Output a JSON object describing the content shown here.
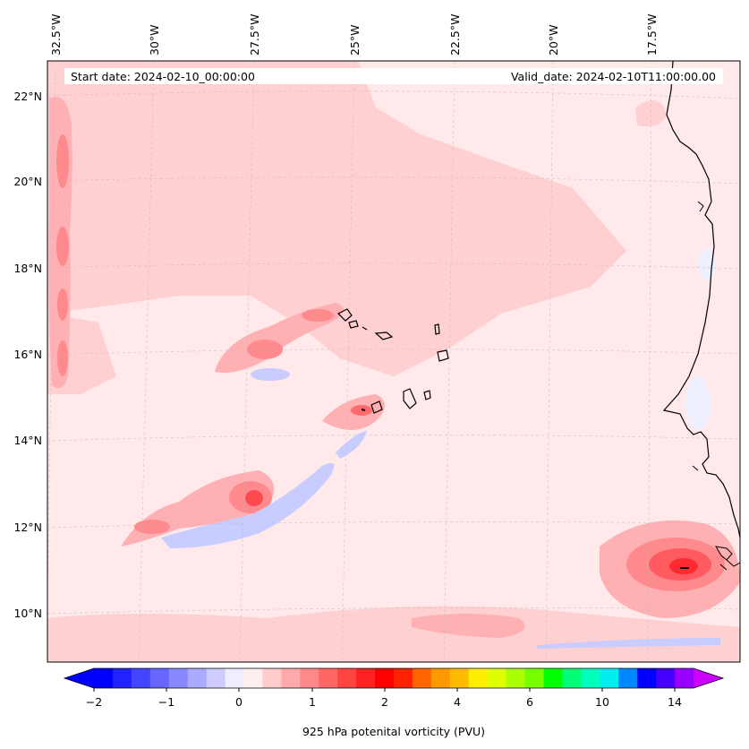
{
  "map": {
    "lon_labels": [
      "32.5°W",
      "30°W",
      "27.5°W",
      "25°W",
      "22.5°W",
      "20°W",
      "17.5°W"
    ],
    "lat_labels": [
      "22°N",
      "20°N",
      "18°N",
      "16°N",
      "14°N",
      "12°N",
      "10°N"
    ],
    "start_date": "Start date: 2024-02-10_00:00:00",
    "valid_date": "Valid_date: 2024-02-10T11:00:00.00"
  },
  "colorbar": {
    "ticks": [
      "−2",
      "−1",
      "0",
      "1",
      "2",
      "4",
      "6",
      "10",
      "14"
    ],
    "label": "925 hPa potenital vorticity (PVU)",
    "colors": [
      "#0000ff",
      "#2222ff",
      "#4444ff",
      "#6666ff",
      "#8888ff",
      "#aaaaff",
      "#ccccff",
      "#eeeeff",
      "#ffeeee",
      "#ffcccc",
      "#ffaaaa",
      "#ff8888",
      "#ff6666",
      "#ff4444",
      "#ff2222",
      "#ff0000",
      "#ff2200",
      "#ff6600",
      "#ff9900",
      "#ffbb00",
      "#ffee00",
      "#ddff00",
      "#aaff00",
      "#77ff00",
      "#00ff00",
      "#00ff77",
      "#00ffbb",
      "#00eeee",
      "#0088ff",
      "#0000ff",
      "#4400ff",
      "#9900ff"
    ],
    "under_color": "#0000ff",
    "over_color": "#cc00ff"
  },
  "colors": {
    "background_pv": "#ffe9ea",
    "light": "#ffd0d2",
    "medium": "#ffb0b3",
    "strong": "#ff8a8e",
    "intense": "#ff5a5f",
    "peak": "#ff2a2f",
    "negative_light": "#eef0ff",
    "negative": "#c8ccff",
    "negative_strong": "#aab0ff"
  }
}
